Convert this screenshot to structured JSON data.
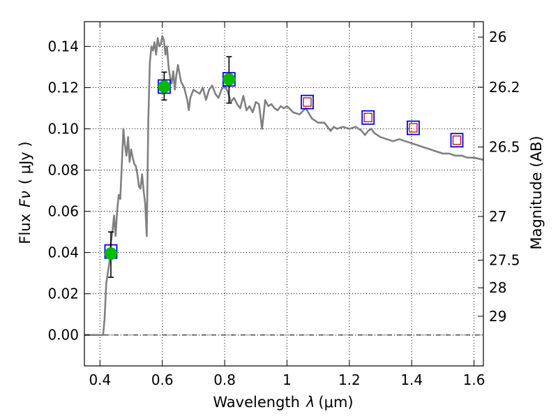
{
  "chart_data": {
    "type": "scatter",
    "xlabel_prefix": "Wavelength",
    "xlabel_symbol": "λ",
    "xlabel_unit": "(μm)",
    "ylabel_prefix": "Flux",
    "ylabel_symbol": "Fν",
    "ylabel_unit": "( μJy )",
    "ylabel_right": "Magnitude (AB)",
    "xlim": [
      0.35,
      1.63
    ],
    "ylim": [
      -0.015,
      0.152
    ],
    "x_ticks": [
      0.4,
      0.6,
      0.8,
      1.0,
      1.2,
      1.4,
      1.6
    ],
    "x_tick_labels": [
      "0.4",
      "0.6",
      "0.8",
      "1",
      "1.2",
      "1.4",
      "1.6"
    ],
    "y_ticks": [
      0.0,
      0.02,
      0.04,
      0.06,
      0.08,
      0.1,
      0.12,
      0.14
    ],
    "y_tick_labels": [
      "0.00",
      "0.02",
      "0.04",
      "0.06",
      "0.08",
      "0.10",
      "0.12",
      "0.14"
    ],
    "right_ticks": [
      {
        "label": "26",
        "flux": 0.1445
      },
      {
        "label": "26.2",
        "flux": 0.1202
      },
      {
        "label": "26.5",
        "flux": 0.0912
      },
      {
        "label": "27",
        "flux": 0.0575
      },
      {
        "label": "27.5",
        "flux": 0.0363
      },
      {
        "label": "28",
        "flux": 0.0229
      },
      {
        "label": "29",
        "flux": 0.0091
      }
    ],
    "grid": true,
    "zero_line": true,
    "colors": {
      "sed": "#808080",
      "observed": "#00bb00",
      "model_box_outer": "#0000ee",
      "model_box_inner": "#cc0000",
      "errorbar": "#000000"
    },
    "sed_model": {
      "x": [
        0.35,
        0.4,
        0.41,
        0.415,
        0.42,
        0.43,
        0.435,
        0.44,
        0.445,
        0.45,
        0.455,
        0.46,
        0.465,
        0.47,
        0.475,
        0.48,
        0.485,
        0.49,
        0.495,
        0.5,
        0.505,
        0.51,
        0.515,
        0.52,
        0.525,
        0.53,
        0.535,
        0.54,
        0.545,
        0.55,
        0.555,
        0.56,
        0.565,
        0.57,
        0.575,
        0.58,
        0.585,
        0.59,
        0.595,
        0.6,
        0.605,
        0.61,
        0.615,
        0.62,
        0.625,
        0.63,
        0.635,
        0.64,
        0.645,
        0.65,
        0.66,
        0.67,
        0.68,
        0.685,
        0.69,
        0.7,
        0.71,
        0.72,
        0.73,
        0.74,
        0.75,
        0.76,
        0.77,
        0.78,
        0.79,
        0.8,
        0.81,
        0.82,
        0.83,
        0.84,
        0.85,
        0.86,
        0.87,
        0.88,
        0.89,
        0.9,
        0.91,
        0.92,
        0.93,
        0.94,
        0.95,
        0.96,
        0.97,
        0.98,
        0.99,
        1.0,
        1.02,
        1.04,
        1.06,
        1.08,
        1.1,
        1.12,
        1.14,
        1.15,
        1.16,
        1.18,
        1.2,
        1.22,
        1.24,
        1.25,
        1.26,
        1.27,
        1.28,
        1.3,
        1.32,
        1.34,
        1.36,
        1.38,
        1.4,
        1.42,
        1.44,
        1.46,
        1.48,
        1.5,
        1.52,
        1.54,
        1.56,
        1.58,
        1.6,
        1.63
      ],
      "y": [
        0.0,
        0.0,
        0.0,
        0.008,
        0.025,
        0.035,
        0.045,
        0.05,
        0.058,
        0.048,
        0.06,
        0.068,
        0.066,
        0.082,
        0.1,
        0.092,
        0.087,
        0.096,
        0.084,
        0.09,
        0.086,
        0.083,
        0.082,
        0.078,
        0.072,
        0.071,
        0.078,
        0.07,
        0.064,
        0.048,
        0.104,
        0.132,
        0.14,
        0.138,
        0.142,
        0.136,
        0.144,
        0.14,
        0.141,
        0.145,
        0.143,
        0.136,
        0.14,
        0.13,
        0.125,
        0.122,
        0.128,
        0.119,
        0.126,
        0.131,
        0.123,
        0.12,
        0.114,
        0.109,
        0.115,
        0.119,
        0.118,
        0.117,
        0.12,
        0.114,
        0.119,
        0.121,
        0.117,
        0.115,
        0.119,
        0.121,
        0.118,
        0.113,
        0.115,
        0.112,
        0.11,
        0.116,
        0.109,
        0.111,
        0.108,
        0.113,
        0.112,
        0.1,
        0.114,
        0.111,
        0.112,
        0.11,
        0.109,
        0.111,
        0.11,
        0.111,
        0.108,
        0.107,
        0.11,
        0.105,
        0.103,
        0.103,
        0.099,
        0.101,
        0.1,
        0.101,
        0.1,
        0.101,
        0.099,
        0.097,
        0.099,
        0.1,
        0.098,
        0.096,
        0.095,
        0.094,
        0.095,
        0.094,
        0.093,
        0.092,
        0.091,
        0.09,
        0.089,
        0.088,
        0.088,
        0.087,
        0.087,
        0.086,
        0.086,
        0.085
      ]
    },
    "observed_points": [
      {
        "x": 0.435,
        "y": 0.0395,
        "yerr_low": 0.0115,
        "yerr_high": 0.0105
      },
      {
        "x": 0.606,
        "y": 0.1205,
        "yerr_low": 0.0065,
        "yerr_high": 0.007
      },
      {
        "x": 0.814,
        "y": 0.124,
        "yerr_low": 0.0115,
        "yerr_high": 0.011
      }
    ],
    "model_points": [
      {
        "x": 0.435,
        "y": 0.0405,
        "inner": false
      },
      {
        "x": 0.606,
        "y": 0.1205,
        "inner": false
      },
      {
        "x": 0.814,
        "y": 0.124,
        "inner": false
      },
      {
        "x": 1.065,
        "y": 0.113,
        "inner": true
      },
      {
        "x": 1.26,
        "y": 0.1055,
        "inner": true
      },
      {
        "x": 1.405,
        "y": 0.1005,
        "inner": true
      },
      {
        "x": 1.545,
        "y": 0.0945,
        "inner": true
      }
    ]
  }
}
